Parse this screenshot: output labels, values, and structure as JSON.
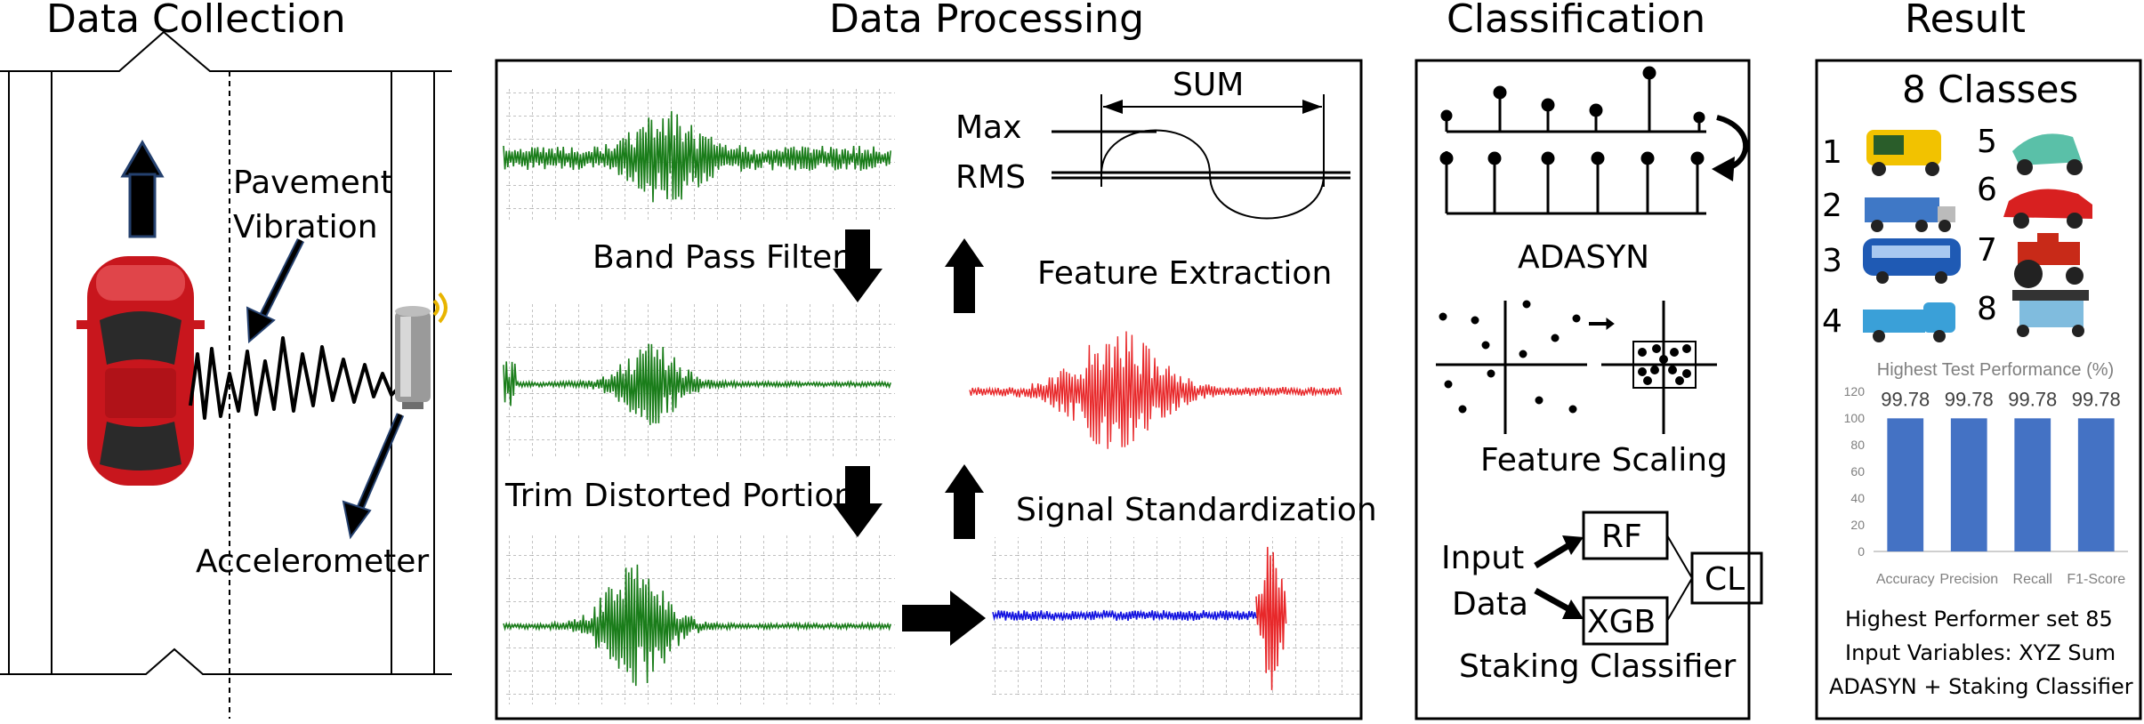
{
  "sections": {
    "collection": {
      "title": "Data Collection",
      "pavement_label_1": "Pavement",
      "pavement_label_2": "Vibration",
      "sensor_label": "Accelerometer"
    },
    "processing": {
      "title": "Data Processing",
      "band_pass": "Band Pass Filter",
      "trim": "Trim Distorted Portion",
      "feature_extraction": "Feature Extraction",
      "standardization": "Signal Standardization",
      "sum_label": "SUM",
      "max_label": "Max",
      "rms_label": "RMS"
    },
    "classification": {
      "title": "Classification",
      "adasyn": "ADASYN",
      "feature_scaling": "Feature Scaling",
      "input_1": "Input",
      "input_2": "Data",
      "rf": "RF",
      "xgb": "XGB",
      "cl": "CL",
      "stacking": "Staking Classifier"
    },
    "result": {
      "title": "Result",
      "classes_heading": "8 Classes",
      "class_numbers": [
        "1",
        "2",
        "3",
        "4",
        "5",
        "6",
        "7",
        "8"
      ],
      "footer_1": "Highest Performer set 85",
      "footer_2": "Input Variables: XYZ Sum",
      "footer_3": "ADASYN + Staking Classifier"
    }
  },
  "colors": {
    "signal_green": "#1a7d1a",
    "signal_red": "#e8282a",
    "signal_blue": "#1414e0",
    "bar_blue": "#4472c4",
    "car_red": "#c8161d"
  },
  "chart_data": {
    "type": "bar",
    "title": "Highest Test Performance (%)",
    "categories": [
      "Accuracy",
      "Precision",
      "Recall",
      "F1-Score"
    ],
    "values": [
      99.78,
      99.78,
      99.78,
      99.78
    ],
    "data_labels": [
      "99.78",
      "99.78",
      "99.78",
      "99.78"
    ],
    "ylim": [
      0,
      120
    ],
    "yticks": [
      "0",
      "20",
      "40",
      "60",
      "80",
      "100",
      "120"
    ],
    "grid": false
  }
}
